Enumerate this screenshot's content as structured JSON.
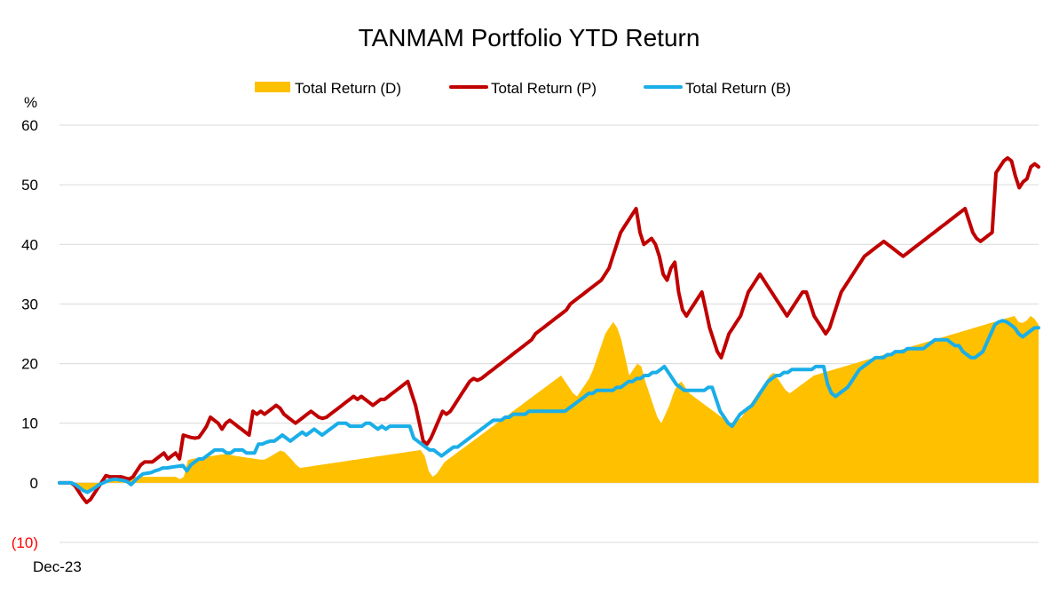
{
  "chart_data": {
    "type": "line",
    "title": "TANMAM Portfolio YTD Return",
    "ylabel": "%",
    "ylim": [
      -10,
      60
    ],
    "yticks": [
      60,
      50,
      40,
      30,
      20,
      10,
      0,
      -10
    ],
    "ytick_labels": [
      "60",
      "50",
      "40",
      "30",
      "20",
      "10",
      "0",
      "(10)"
    ],
    "negative_tick_color": "#ff0000",
    "x_start_label": "Dec-23",
    "grid": true,
    "legend_position": "top-center",
    "n_points": 240,
    "series": [
      {
        "name": "Total Return (D)",
        "kind": "area",
        "color": "#ffc000",
        "values": [
          0.0,
          0.0,
          0.0,
          0.0,
          -0.4,
          -0.8,
          -1.2,
          -1.6,
          -1.0,
          -0.6,
          -0.2,
          0.2,
          0.4,
          0.6,
          0.8,
          1.0,
          1.0,
          1.0,
          1.0,
          1.0,
          1.0,
          1.0,
          1.0,
          1.0,
          1.0,
          1.0,
          1.0,
          1.0,
          1.0,
          1.0,
          0.6,
          1.0,
          3.8,
          4.0,
          4.1,
          4.2,
          4.3,
          4.4,
          4.5,
          4.6,
          4.7,
          4.8,
          4.8,
          4.6,
          4.5,
          4.4,
          4.3,
          4.2,
          4.1,
          4.0,
          3.9,
          3.9,
          4.2,
          4.6,
          5.0,
          5.4,
          5.2,
          4.5,
          3.8,
          3.0,
          2.5,
          2.6,
          2.7,
          2.8,
          2.9,
          3.0,
          3.1,
          3.2,
          3.3,
          3.4,
          3.5,
          3.6,
          3.7,
          3.8,
          3.9,
          4.0,
          4.1,
          4.2,
          4.3,
          4.4,
          4.5,
          4.6,
          4.7,
          4.8,
          4.9,
          5.0,
          5.1,
          5.2,
          5.3,
          5.4,
          5.5,
          4.5,
          2.0,
          1.0,
          1.5,
          2.5,
          3.5,
          4.0,
          4.5,
          5.0,
          5.5,
          6.0,
          6.5,
          7.0,
          7.5,
          8.0,
          8.5,
          9.0,
          9.5,
          10.0,
          10.5,
          11.0,
          11.5,
          12.0,
          12.5,
          13.0,
          13.5,
          14.0,
          14.5,
          15.0,
          15.5,
          16.0,
          16.5,
          17.0,
          17.5,
          18.0,
          17.0,
          16.0,
          15.0,
          14.5,
          15.5,
          16.5,
          17.5,
          19.0,
          21.0,
          23.0,
          25.0,
          26.0,
          27.0,
          26.0,
          24.0,
          21.0,
          18.0,
          19.0,
          20.0,
          19.5,
          17.0,
          15.0,
          13.0,
          11.0,
          10.0,
          11.5,
          13.0,
          15.0,
          16.5,
          17.0,
          16.0,
          15.0,
          14.5,
          14.0,
          13.5,
          13.0,
          12.5,
          12.0,
          11.5,
          11.0,
          10.5,
          10.0,
          10.2,
          10.5,
          11.0,
          12.0,
          13.0,
          14.0,
          15.0,
          16.0,
          17.0,
          18.0,
          18.5,
          17.5,
          16.5,
          15.5,
          15.0,
          15.5,
          16.0,
          16.5,
          17.0,
          17.5,
          18.0,
          18.2,
          18.4,
          18.6,
          18.8,
          19.0,
          19.2,
          19.4,
          19.6,
          19.8,
          20.0,
          20.2,
          20.4,
          20.6,
          20.8,
          21.0,
          21.2,
          21.4,
          21.6,
          21.8,
          22.0,
          22.2,
          22.4,
          22.6,
          22.8,
          23.0,
          23.2,
          23.4,
          23.6,
          23.8,
          24.0,
          24.2,
          24.4,
          24.6,
          24.8,
          25.0,
          25.2,
          25.4,
          25.6,
          25.8,
          26.0,
          26.2,
          26.4,
          26.6,
          26.8,
          27.0,
          27.2,
          27.4,
          27.6,
          27.8,
          28.0,
          27.0,
          26.8,
          27.2,
          28.0,
          27.5,
          26.5
        ]
      },
      {
        "name": "Total Return (P)",
        "kind": "line",
        "color": "#c00000",
        "values": [
          0.0,
          0.0,
          0.0,
          0.0,
          -0.5,
          -1.5,
          -2.5,
          -3.3,
          -2.8,
          -1.8,
          -0.8,
          0.2,
          1.2,
          1.0,
          1.0,
          1.0,
          1.0,
          0.8,
          0.6,
          1.0,
          2.0,
          3.0,
          3.5,
          3.5,
          3.5,
          4.0,
          4.5,
          5.0,
          4.0,
          4.5,
          5.0,
          4.0,
          8.0,
          7.8,
          7.6,
          7.5,
          7.6,
          8.5,
          9.5,
          11.0,
          10.5,
          10.0,
          9.0,
          10.0,
          10.5,
          10.0,
          9.5,
          9.0,
          8.5,
          8.0,
          12.0,
          11.5,
          12.0,
          11.5,
          12.0,
          12.5,
          13.0,
          12.5,
          11.5,
          11.0,
          10.5,
          10.0,
          10.5,
          11.0,
          11.5,
          12.0,
          11.5,
          11.0,
          10.8,
          11.0,
          11.5,
          12.0,
          12.5,
          13.0,
          13.5,
          14.0,
          14.5,
          14.0,
          14.5,
          14.0,
          13.5,
          13.0,
          13.5,
          14.0,
          14.0,
          14.5,
          15.0,
          15.5,
          16.0,
          16.5,
          17.0,
          15.0,
          13.0,
          10.0,
          7.0,
          6.5,
          7.5,
          9.0,
          10.5,
          12.0,
          11.5,
          12.0,
          13.0,
          14.0,
          15.0,
          16.0,
          17.0,
          17.5,
          17.2,
          17.5,
          18.0,
          18.5,
          19.0,
          19.5,
          20.0,
          20.5,
          21.0,
          21.5,
          22.0,
          22.5,
          23.0,
          23.5,
          24.0,
          25.0,
          25.5,
          26.0,
          26.5,
          27.0,
          27.5,
          28.0,
          28.5,
          29.0,
          30.0,
          30.5,
          31.0,
          31.5,
          32.0,
          32.5,
          33.0,
          33.5,
          34.0,
          35.0,
          36.0,
          38.0,
          40.0,
          42.0,
          43.0,
          44.0,
          45.0,
          46.0,
          42.0,
          40.0,
          40.5,
          41.0,
          40.0,
          38.0,
          35.0,
          34.0,
          36.0,
          37.0,
          32.0,
          29.0,
          28.0,
          29.0,
          30.0,
          31.0,
          32.0,
          29.0,
          26.0,
          24.0,
          22.0,
          21.0,
          23.0,
          25.0,
          26.0,
          27.0,
          28.0,
          30.0,
          32.0,
          33.0,
          34.0,
          35.0,
          34.0,
          33.0,
          32.0,
          31.0,
          30.0,
          29.0,
          28.0,
          29.0,
          30.0,
          31.0,
          32.0,
          32.0,
          30.0,
          28.0,
          27.0,
          26.0,
          25.0,
          26.0,
          28.0,
          30.0,
          32.0,
          33.0,
          34.0,
          35.0,
          36.0,
          37.0,
          38.0,
          38.5,
          39.0,
          39.5,
          40.0,
          40.5,
          40.0,
          39.5,
          39.0,
          38.5,
          38.0,
          38.5,
          39.0,
          39.5,
          40.0,
          40.5,
          41.0,
          41.5,
          42.0,
          42.5,
          43.0,
          43.5,
          44.0,
          44.5,
          45.0,
          45.5,
          46.0,
          44.0,
          42.0,
          41.0,
          40.5,
          41.0,
          41.5,
          42.0,
          52.0,
          53.0,
          54.0,
          54.5,
          54.0,
          51.5,
          49.5,
          50.5,
          51.0,
          53.0,
          53.5,
          53.0
        ]
      },
      {
        "name": "Total Return (B)",
        "kind": "line",
        "color": "#1aaee8",
        "values": [
          0.0,
          0.0,
          0.0,
          0.0,
          -0.3,
          -0.8,
          -1.3,
          -1.6,
          -1.2,
          -0.8,
          -0.3,
          0.0,
          0.3,
          0.5,
          0.6,
          0.5,
          0.4,
          0.2,
          -0.3,
          0.4,
          1.0,
          1.5,
          1.6,
          1.7,
          2.0,
          2.2,
          2.5,
          2.5,
          2.6,
          2.7,
          2.8,
          2.9,
          2.0,
          3.0,
          3.5,
          4.0,
          4.0,
          4.5,
          5.0,
          5.5,
          5.5,
          5.5,
          5.0,
          5.0,
          5.5,
          5.5,
          5.5,
          5.0,
          5.0,
          5.0,
          6.5,
          6.5,
          6.8,
          7.0,
          7.0,
          7.5,
          8.0,
          7.5,
          7.0,
          7.5,
          8.0,
          8.5,
          8.0,
          8.5,
          9.0,
          8.5,
          8.0,
          8.5,
          9.0,
          9.5,
          10.0,
          10.0,
          10.0,
          9.5,
          9.5,
          9.5,
          9.5,
          10.0,
          10.0,
          9.5,
          9.0,
          9.5,
          9.0,
          9.5,
          9.5,
          9.5,
          9.5,
          9.5,
          9.5,
          7.5,
          7.0,
          6.5,
          6.0,
          5.5,
          5.5,
          5.0,
          4.5,
          5.0,
          5.5,
          6.0,
          6.0,
          6.5,
          7.0,
          7.5,
          8.0,
          8.5,
          9.0,
          9.5,
          10.0,
          10.5,
          10.5,
          10.5,
          11.0,
          11.0,
          11.5,
          11.5,
          11.5,
          11.5,
          12.0,
          12.0,
          12.0,
          12.0,
          12.0,
          12.0,
          12.0,
          12.0,
          12.0,
          12.0,
          12.5,
          13.0,
          13.5,
          14.0,
          14.5,
          15.0,
          15.0,
          15.5,
          15.5,
          15.5,
          15.5,
          15.5,
          16.0,
          16.0,
          16.5,
          17.0,
          17.0,
          17.5,
          17.5,
          18.0,
          18.0,
          18.5,
          18.5,
          19.0,
          19.5,
          18.5,
          17.5,
          16.5,
          16.0,
          15.5,
          15.5,
          15.5,
          15.5,
          15.5,
          15.5,
          16.0,
          16.0,
          14.0,
          12.0,
          11.0,
          10.0,
          9.5,
          10.5,
          11.5,
          12.0,
          12.5,
          13.0,
          14.0,
          15.0,
          16.0,
          17.0,
          17.5,
          18.0,
          18.0,
          18.5,
          18.5,
          19.0,
          19.0,
          19.0,
          19.0,
          19.0,
          19.0,
          19.5,
          19.5,
          19.5,
          16.5,
          15.0,
          14.5,
          15.0,
          15.5,
          16.0,
          17.0,
          18.0,
          19.0,
          19.5,
          20.0,
          20.5,
          21.0,
          21.0,
          21.0,
          21.5,
          21.5,
          22.0,
          22.0,
          22.0,
          22.5,
          22.5,
          22.5,
          22.5,
          22.5,
          23.0,
          23.5,
          24.0,
          24.0,
          24.0,
          24.0,
          23.5,
          23.0,
          23.0,
          22.0,
          21.5,
          21.0,
          21.0,
          21.5,
          22.0,
          23.5,
          25.0,
          26.5,
          27.0,
          27.2,
          27.0,
          26.5,
          26.0,
          25.0,
          24.5,
          25.0,
          25.5,
          26.0,
          26.0
        ]
      }
    ]
  }
}
